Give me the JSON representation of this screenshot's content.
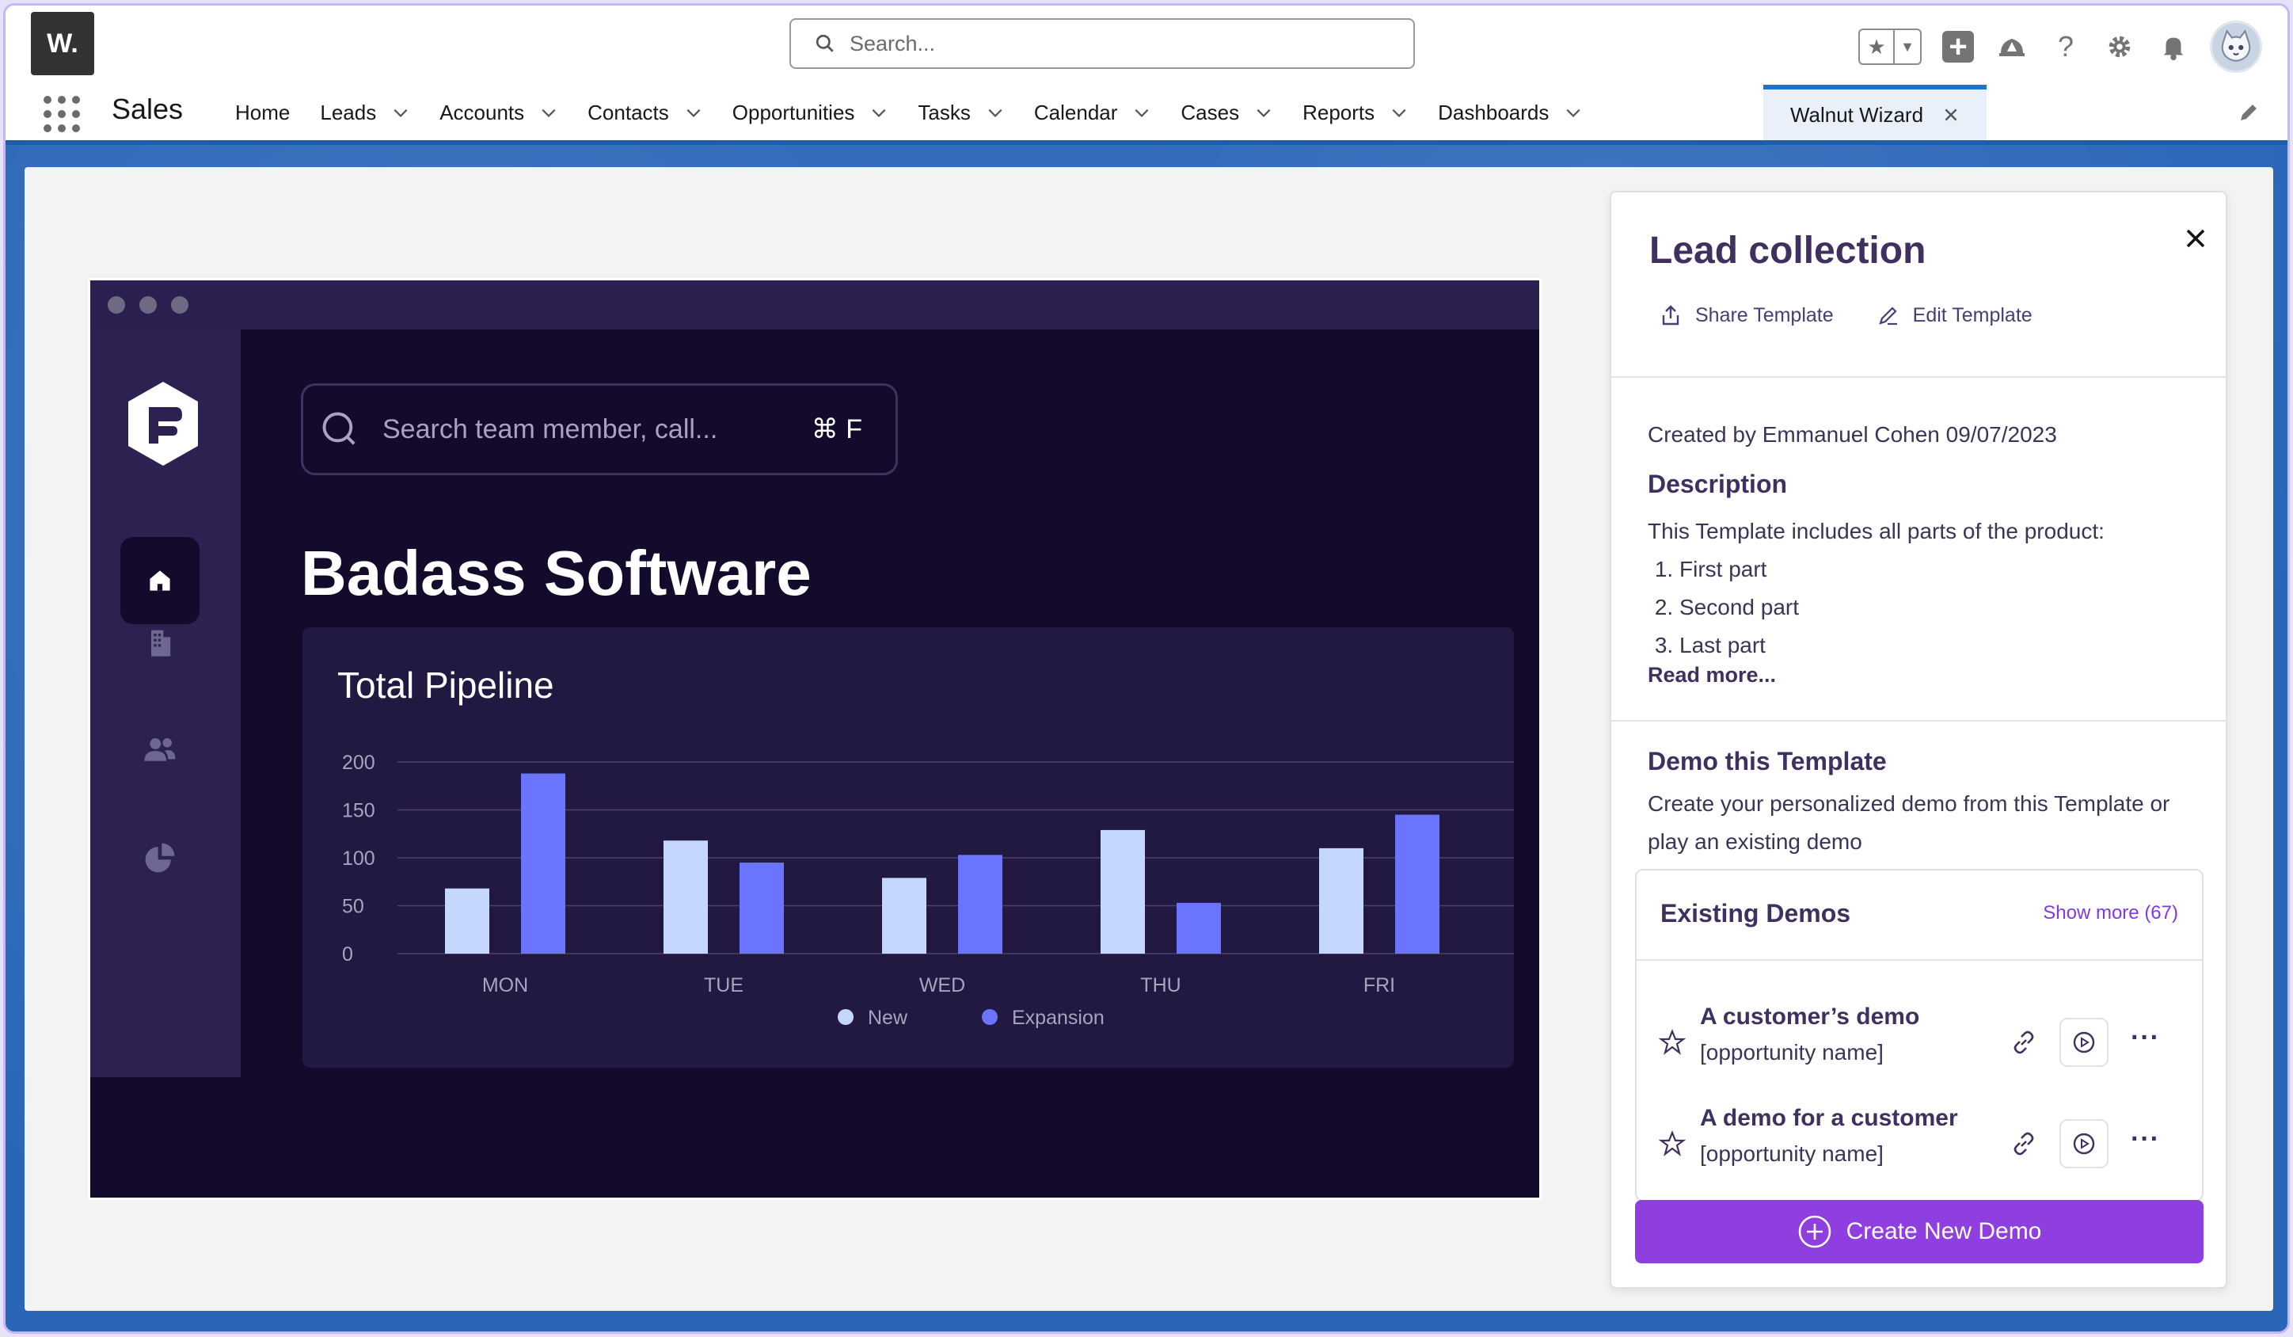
{
  "header": {
    "logo_text": "W.",
    "search_placeholder": "Search...",
    "icons": [
      "favorites-star-icon",
      "dropdown-icon",
      "add-icon",
      "trailhead-icon",
      "help-icon",
      "gear-icon",
      "bell-icon",
      "avatar"
    ]
  },
  "nav": {
    "app_name": "Sales",
    "items": [
      {
        "label": "Home",
        "dropdown": false
      },
      {
        "label": "Leads",
        "dropdown": true
      },
      {
        "label": "Accounts",
        "dropdown": true
      },
      {
        "label": "Contacts",
        "dropdown": true
      },
      {
        "label": "Opportunities",
        "dropdown": true
      },
      {
        "label": "Tasks",
        "dropdown": true
      },
      {
        "label": "Calendar",
        "dropdown": true
      },
      {
        "label": "Cases",
        "dropdown": true
      },
      {
        "label": "Reports",
        "dropdown": true
      },
      {
        "label": "Dashboards",
        "dropdown": true
      }
    ],
    "active_tab": "Walnut Wizard"
  },
  "demo_preview": {
    "search_placeholder": "Search team member, call...",
    "shortcut": "⌘ F",
    "title": "Badass Software",
    "card_title": "Total Pipeline"
  },
  "chart_data": {
    "type": "bar",
    "title": "Total Pipeline",
    "categories": [
      "MON",
      "TUE",
      "WED",
      "THU",
      "FRI"
    ],
    "series": [
      {
        "name": "New",
        "values": [
          68,
          118,
          79,
          129,
          110
        ],
        "color": "#c5d6ff"
      },
      {
        "name": "Expansion",
        "values": [
          188,
          95,
          103,
          53,
          145
        ],
        "color": "#6b74ff"
      }
    ],
    "yticks": [
      0,
      50,
      100,
      150,
      200
    ],
    "ylim": [
      0,
      200
    ],
    "grid": true,
    "legend": "bottom-center"
  },
  "panel": {
    "title": "Lead collection",
    "share_label": "Share Template",
    "edit_label": "Edit Template",
    "created_by": "Created by Emmanuel Cohen 09/07/2023",
    "description_heading": "Description",
    "description_intro": "This Template includes all parts of the product:",
    "description_items": [
      "First part",
      "Second part",
      "Last part"
    ],
    "read_more": "Read more...",
    "demo_heading": "Demo this Template",
    "demo_text": "Create your personalized demo from this Template or play an existing demo",
    "existing_heading": "Existing Demos",
    "show_more": "Show more (67)",
    "demos": [
      {
        "title": "A customer’s demo",
        "subtitle": "[opportunity name]"
      },
      {
        "title": "A demo for a customer",
        "subtitle": "[opportunity name]"
      }
    ],
    "create_button": "Create New Demo"
  }
}
